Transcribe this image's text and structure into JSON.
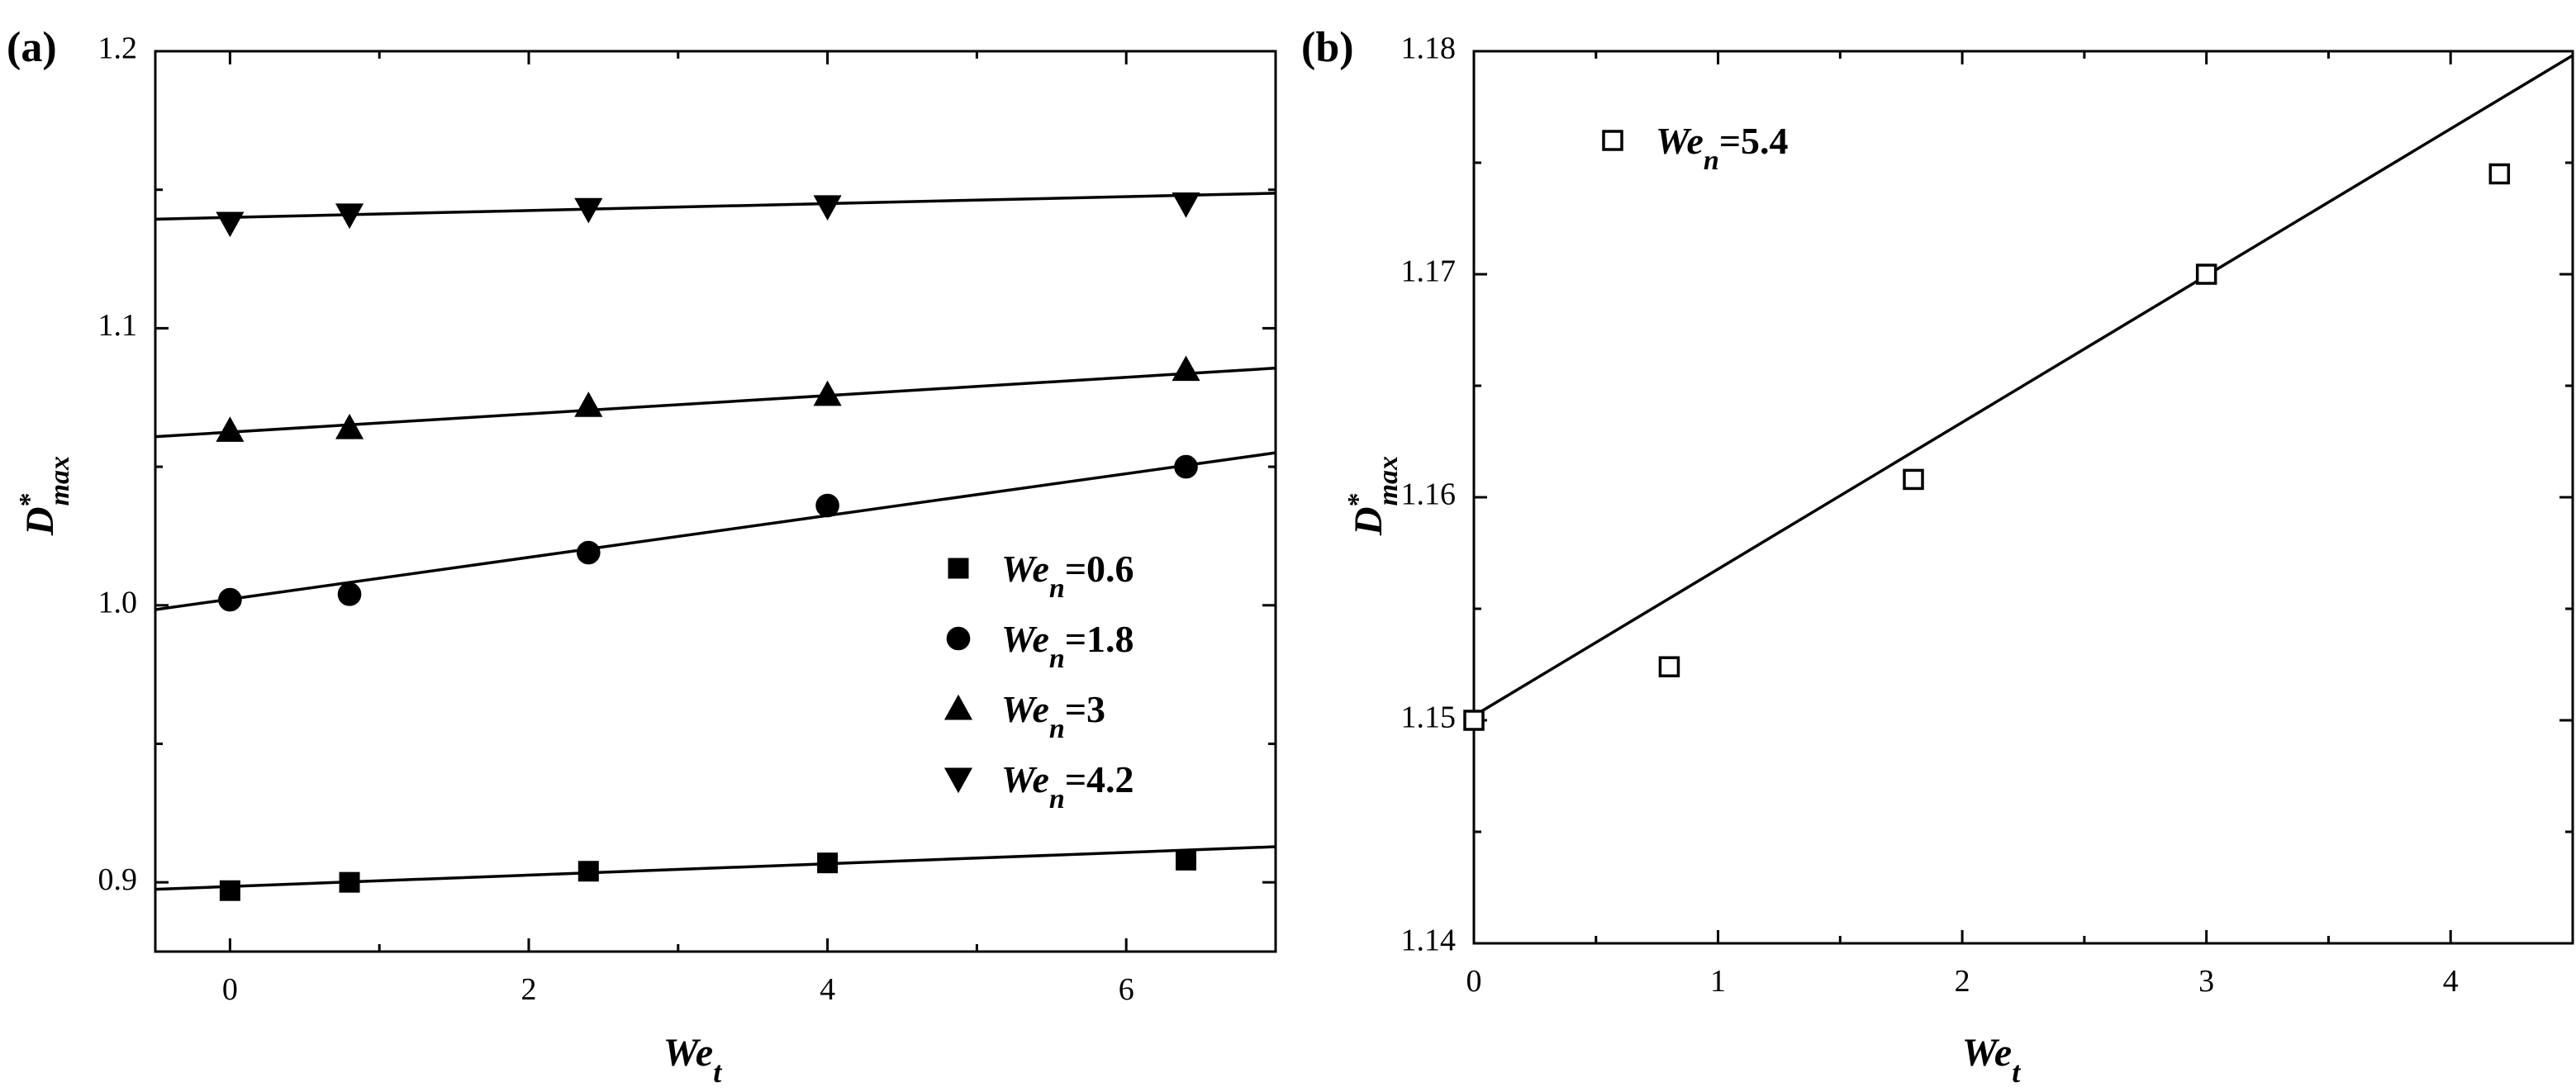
{
  "chart_data": [
    {
      "type": "scatter",
      "panel_label": "(a)",
      "xlabel": {
        "main": "We",
        "sub": "t"
      },
      "ylabel": {
        "main": "D",
        "sup": "*",
        "sub": "max"
      },
      "xlim": [
        -0.5,
        7
      ],
      "ylim": [
        0.875,
        1.2
      ],
      "xticks": [
        0,
        2,
        4,
        6
      ],
      "yticks": [
        0.9,
        1.0,
        1.1,
        1.2
      ],
      "ytick_labels": [
        "0.9",
        "1.0",
        "1.1",
        "1.2"
      ],
      "legend_position": "center-right",
      "series": [
        {
          "name": "We_n=0.6",
          "legend": {
            "main": "We",
            "sub": "n",
            "rest": "=0.6"
          },
          "marker": "square",
          "filled": true,
          "x": [
            0,
            0.8,
            2.4,
            4,
            6.4
          ],
          "y": [
            0.897,
            0.9,
            0.904,
            0.907,
            0.908
          ],
          "fit": [
            0.8985,
            0.00205
          ]
        },
        {
          "name": "We_n=1.8",
          "legend": {
            "main": "We",
            "sub": "n",
            "rest": "=1.8"
          },
          "marker": "circle",
          "filled": true,
          "x": [
            0,
            0.8,
            2.4,
            4,
            6.4
          ],
          "y": [
            1.002,
            1.004,
            1.019,
            1.036,
            1.05
          ],
          "fit": [
            1.0022,
            0.00755
          ]
        },
        {
          "name": "We_n=3",
          "legend": {
            "main": "We",
            "sub": "n",
            "rest": "=3"
          },
          "marker": "triangle-up",
          "filled": true,
          "x": [
            0,
            0.8,
            2.4,
            4,
            6.4
          ],
          "y": [
            1.063,
            1.064,
            1.072,
            1.076,
            1.085
          ],
          "fit": [
            1.0625,
            0.0033
          ]
        },
        {
          "name": "We_n=4.2",
          "legend": {
            "main": "We",
            "sub": "n",
            "rest": "=4.2"
          },
          "marker": "triangle-down",
          "filled": true,
          "x": [
            0,
            0.8,
            2.4,
            4,
            6.4
          ],
          "y": [
            1.138,
            1.141,
            1.143,
            1.144,
            1.145
          ],
          "fit": [
            1.14,
            0.00125
          ]
        }
      ]
    },
    {
      "type": "scatter",
      "panel_label": "(b)",
      "xlabel": {
        "main": "We",
        "sub": "t"
      },
      "ylabel": {
        "main": "D",
        "sup": "*",
        "sub": "max"
      },
      "xlim": [
        0,
        4.5
      ],
      "ylim": [
        1.14,
        1.18
      ],
      "xticks": [
        0,
        1,
        2,
        3,
        4
      ],
      "yticks": [
        1.14,
        1.15,
        1.16,
        1.17,
        1.18
      ],
      "ytick_labels": [
        "1.14",
        "1.15",
        "1.16",
        "1.17",
        "1.18"
      ],
      "legend_position": "top-left",
      "series": [
        {
          "name": "We_n=5.4",
          "legend": {
            "main": "We",
            "sub": "n",
            "rest": "=5.4"
          },
          "marker": "square",
          "filled": false,
          "x": [
            0,
            0.8,
            1.8,
            3,
            4.2
          ],
          "y": [
            1.15,
            1.1524,
            1.1608,
            1.17,
            1.1745
          ],
          "fit": [
            1.1502,
            0.00658
          ]
        }
      ]
    }
  ]
}
